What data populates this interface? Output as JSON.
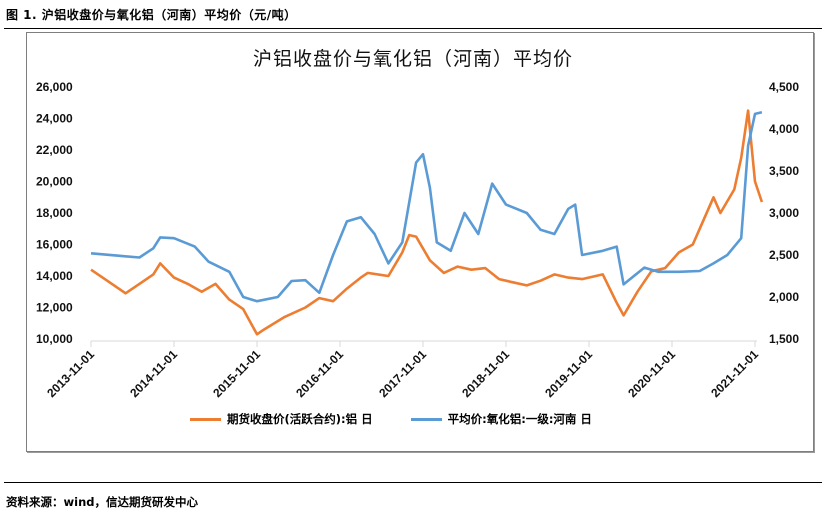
{
  "figure": {
    "caption": "图 1. 沪铝收盘价与氧化铝（河南）平均价（元/吨）",
    "source": "资料来源：wind，信达期货研发中心"
  },
  "colors": {
    "aluminum_series": "#ED7D31",
    "alumina_series": "#5B9BD5",
    "gridline": "#d9d9d9",
    "frame": "#7f7f7f"
  },
  "chart_data": {
    "type": "line",
    "title": "沪铝收盘价与氧化铝（河南）平均价",
    "xlabel": "",
    "ylabel": "",
    "y2label": "",
    "x_tick_labels": [
      "2013-11-01",
      "2014-11-01",
      "2015-11-01",
      "2016-11-01",
      "2017-11-01",
      "2018-11-01",
      "2019-11-01",
      "2020-11-01",
      "2021-11-01"
    ],
    "y_left_ticks": [
      "26,000",
      "24,000",
      "22,000",
      "20,000",
      "18,000",
      "16,000",
      "14,000",
      "12,000",
      "10,000"
    ],
    "y_right_ticks": [
      "4,500",
      "4,000",
      "3,500",
      "3,000",
      "2,500",
      "2,000",
      "1,500"
    ],
    "ylim_left": [
      10000,
      26000
    ],
    "ylim_right": [
      1500,
      4500
    ],
    "grid": "vertical tick marks only",
    "legend_position": "bottom",
    "series": [
      {
        "name": "期货收盘价(活跃合约):铝 日",
        "axis": "left",
        "color": "#ED7D31",
        "x": [
          "2013-11",
          "2014-01",
          "2014-03",
          "2014-04",
          "2014-06",
          "2014-08",
          "2014-09",
          "2014-11",
          "2015-01",
          "2015-03",
          "2015-05",
          "2015-07",
          "2015-09",
          "2015-11",
          "2015-12",
          "2016-03",
          "2016-06",
          "2016-08",
          "2016-10",
          "2016-12",
          "2017-02",
          "2017-03",
          "2017-06",
          "2017-08",
          "2017-09",
          "2017-10",
          "2017-12",
          "2018-02",
          "2018-04",
          "2018-06",
          "2018-08",
          "2018-10",
          "2018-12",
          "2019-02",
          "2019-04",
          "2019-06",
          "2019-08",
          "2019-10",
          "2020-01",
          "2020-03",
          "2020-04",
          "2020-06",
          "2020-08",
          "2020-10",
          "2020-12",
          "2021-02",
          "2021-03",
          "2021-05",
          "2021-06",
          "2021-08",
          "2021-09",
          "2021-10",
          "2021-11",
          "2021-12"
        ],
        "values": [
          14400,
          13800,
          13200,
          12900,
          13500,
          14100,
          14800,
          13900,
          13500,
          13000,
          13500,
          12500,
          11900,
          10300,
          10600,
          11400,
          12000,
          12600,
          12400,
          13200,
          13900,
          14200,
          14000,
          15500,
          16600,
          16500,
          15000,
          14200,
          14600,
          14400,
          14500,
          13800,
          13600,
          13400,
          13700,
          14100,
          13900,
          13800,
          14100,
          12300,
          11500,
          13000,
          14300,
          14500,
          15500,
          16000,
          17000,
          19000,
          18000,
          19500,
          21500,
          24500,
          20000,
          18700
        ]
      },
      {
        "name": "平均价:氧化铝:一级:河南 日",
        "axis": "right",
        "color": "#5B9BD5",
        "x": [
          "2013-11",
          "2014-06",
          "2014-08",
          "2014-09",
          "2014-11",
          "2015-02",
          "2015-04",
          "2015-07",
          "2015-09",
          "2015-11",
          "2016-02",
          "2016-04",
          "2016-06",
          "2016-08",
          "2016-10",
          "2016-12",
          "2017-02",
          "2017-04",
          "2017-06",
          "2017-08",
          "2017-10",
          "2017-11",
          "2017-12",
          "2018-01",
          "2018-03",
          "2018-05",
          "2018-07",
          "2018-09",
          "2018-11",
          "2019-02",
          "2019-04",
          "2019-06",
          "2019-08",
          "2019-09",
          "2019-10",
          "2020-01",
          "2020-03",
          "2020-04",
          "2020-07",
          "2020-09",
          "2020-12",
          "2021-03",
          "2021-05",
          "2021-07",
          "2021-09",
          "2021-10",
          "2021-11",
          "2021-12"
        ],
        "values": [
          2520,
          2470,
          2580,
          2710,
          2700,
          2600,
          2420,
          2300,
          2000,
          1950,
          2000,
          2190,
          2200,
          2050,
          2500,
          2900,
          2950,
          2750,
          2400,
          2650,
          3600,
          3700,
          3300,
          2650,
          2550,
          3000,
          2750,
          3350,
          3100,
          3000,
          2800,
          2750,
          3050,
          3100,
          2500,
          2550,
          2600,
          2150,
          2350,
          2300,
          2300,
          2310,
          2400,
          2500,
          2700,
          3800,
          4180,
          4200
        ]
      }
    ]
  }
}
